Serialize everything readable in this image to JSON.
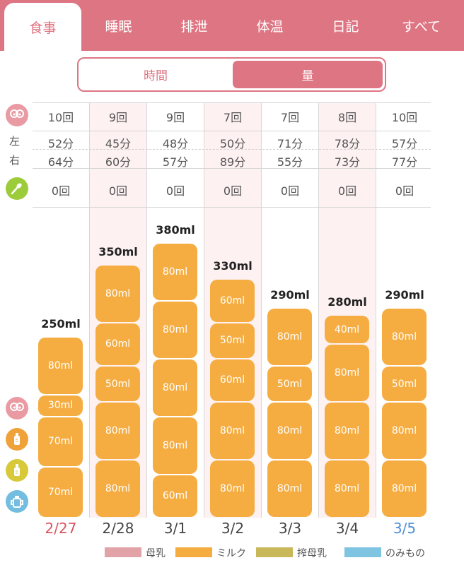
{
  "tabs": [
    {
      "label": "食事",
      "active": true
    },
    {
      "label": "睡眠",
      "active": false
    },
    {
      "label": "排泄",
      "active": false
    },
    {
      "label": "体温",
      "active": false
    },
    {
      "label": "日記",
      "active": false
    },
    {
      "label": "すべて",
      "active": false
    }
  ],
  "segment": {
    "time_label": "時間",
    "amount_label": "量",
    "selected": "量"
  },
  "rows": {
    "left_label": "左",
    "right_label": "右"
  },
  "days": [
    {
      "date": "2/27",
      "date_color": "#d9535f",
      "breast_count": "10回",
      "left": "52分",
      "right": "64分",
      "food_count": "0回",
      "total": "250ml",
      "segments": [
        {
          "label": "70ml",
          "ml": 70
        },
        {
          "label": "70ml",
          "ml": 70
        },
        {
          "label": "30ml",
          "ml": 30
        },
        {
          "label": "80ml",
          "ml": 80
        }
      ]
    },
    {
      "date": "2/28",
      "date_color": "#444444",
      "breast_count": "9回",
      "left": "45分",
      "right": "60分",
      "food_count": "0回",
      "total": "350ml",
      "segments": [
        {
          "label": "80ml",
          "ml": 80
        },
        {
          "label": "80ml",
          "ml": 80
        },
        {
          "label": "50ml",
          "ml": 50
        },
        {
          "label": "60ml",
          "ml": 60
        },
        {
          "label": "80ml",
          "ml": 80
        }
      ]
    },
    {
      "date": "3/1",
      "date_color": "#444444",
      "breast_count": "9回",
      "left": "48分",
      "right": "57分",
      "food_count": "0回",
      "total": "380ml",
      "segments": [
        {
          "label": "60ml",
          "ml": 60
        },
        {
          "label": "80ml",
          "ml": 80
        },
        {
          "label": "80ml",
          "ml": 80
        },
        {
          "label": "80ml",
          "ml": 80
        },
        {
          "label": "80ml",
          "ml": 80
        }
      ]
    },
    {
      "date": "3/2",
      "date_color": "#444444",
      "breast_count": "7回",
      "left": "50分",
      "right": "89分",
      "food_count": "0回",
      "total": "330ml",
      "segments": [
        {
          "label": "80ml",
          "ml": 80
        },
        {
          "label": "80ml",
          "ml": 80
        },
        {
          "label": "60ml",
          "ml": 60
        },
        {
          "label": "50ml",
          "ml": 50
        },
        {
          "label": "60ml",
          "ml": 60
        }
      ]
    },
    {
      "date": "3/3",
      "date_color": "#444444",
      "breast_count": "7回",
      "left": "71分",
      "right": "55分",
      "food_count": "0回",
      "total": "290ml",
      "segments": [
        {
          "label": "80ml",
          "ml": 80
        },
        {
          "label": "80ml",
          "ml": 80
        },
        {
          "label": "50ml",
          "ml": 50
        },
        {
          "label": "80ml",
          "ml": 80
        }
      ]
    },
    {
      "date": "3/4",
      "date_color": "#444444",
      "breast_count": "8回",
      "left": "78分",
      "right": "73分",
      "food_count": "0回",
      "total": "280ml",
      "segments": [
        {
          "label": "80ml",
          "ml": 80
        },
        {
          "label": "80ml",
          "ml": 80
        },
        {
          "label": "80ml",
          "ml": 80
        },
        {
          "label": "40ml",
          "ml": 40
        }
      ]
    },
    {
      "date": "3/5",
      "date_color": "#4f8fd6",
      "breast_count": "10回",
      "left": "57分",
      "right": "77分",
      "food_count": "0回",
      "total": "290ml",
      "segments": [
        {
          "label": "80ml",
          "ml": 80
        },
        {
          "label": "80ml",
          "ml": 80
        },
        {
          "label": "50ml",
          "ml": 50
        },
        {
          "label": "80ml",
          "ml": 80
        }
      ]
    }
  ],
  "legend": [
    {
      "label": "母乳",
      "color": "#e2a3a8"
    },
    {
      "label": "ミルク",
      "color": "#f5ad42"
    },
    {
      "label": "搾母乳",
      "color": "#c8b85a"
    },
    {
      "label": "のみもの",
      "color": "#7fc4e0"
    }
  ],
  "icons": {
    "breast": "breast-icon",
    "spoon": "spoon-icon",
    "milk_bottle": "milk-bottle-icon",
    "pumped_bottle": "pumped-bottle-icon",
    "drink_cup": "drink-cup-icon"
  }
}
